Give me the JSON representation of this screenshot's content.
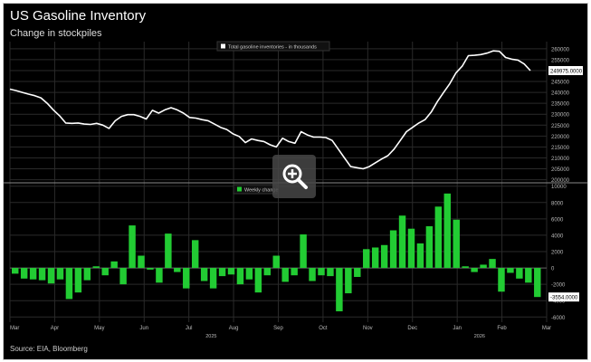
{
  "title": "US Gasoline Inventory",
  "subtitle": "Change in stockpiles",
  "source": "Source: EIA, Bloomberg",
  "zoom_icon": "zoom-in-icon",
  "chart_data": [
    {
      "type": "line",
      "series": [
        {
          "name": "Total gasoline inventories - in thousands",
          "color": "#ffffff",
          "values": [
            241500,
            240800,
            240000,
            239200,
            238500,
            237500,
            235000,
            232000,
            229300,
            226000,
            225800,
            226000,
            225500,
            225300,
            225800,
            225000,
            223500,
            227000,
            229000,
            229800,
            229800,
            229000,
            227800,
            231800,
            230500,
            232000,
            233000,
            232000,
            230500,
            228500,
            228200,
            227500,
            227000,
            225500,
            224000,
            223000,
            221000,
            219800,
            217000,
            218700,
            218000,
            217500,
            216000,
            215000,
            219000,
            217500,
            216700,
            222000,
            220500,
            219500,
            219500,
            219300,
            218000,
            214000,
            210000,
            206000,
            205500,
            205000,
            206000,
            207800,
            209500,
            211000,
            214000,
            218000,
            222000,
            224000,
            226000,
            227500,
            231000,
            235800,
            240000,
            244000,
            249000,
            252000,
            256800,
            257000,
            257300,
            258000,
            259000,
            258800,
            256000,
            255200,
            254800,
            253000,
            249975
          ]
        }
      ],
      "y_ticks": [
        200000,
        205000,
        210000,
        215000,
        220000,
        225000,
        230000,
        235000,
        240000,
        245000,
        250000,
        255000,
        260000
      ],
      "ylim": [
        199000,
        262000
      ],
      "last_value_label": "249975.0000",
      "legend": "top-center"
    },
    {
      "type": "bar",
      "series": [
        {
          "name": "Weekly change",
          "color": "#22cc33",
          "values": [
            -700,
            -1300,
            -1400,
            -1500,
            -1900,
            -1400,
            -3800,
            -3000,
            -1500,
            200,
            -900,
            800,
            -2000,
            5200,
            1500,
            -200,
            -1800,
            4200,
            -500,
            -2500,
            3400,
            -1600,
            -2500,
            -1000,
            -800,
            -2000,
            -1400,
            -3000,
            -900,
            1500,
            -1700,
            -900,
            4100,
            -1600,
            -900,
            -1000,
            -5300,
            -3100,
            -1100,
            2300,
            2500,
            2800,
            4600,
            6400,
            4800,
            3000,
            5100,
            7500,
            9100,
            5900,
            200,
            -500,
            400,
            1100,
            -2900,
            -600,
            -1300,
            -1800,
            -3554
          ]
        }
      ],
      "y_ticks": [
        -6000,
        -4000,
        -2000,
        0,
        2000,
        4000,
        6000,
        8000,
        10000
      ],
      "ylim": [
        -6300,
        10300
      ],
      "last_value_label": "-3554.0000",
      "legend": "top-center"
    }
  ],
  "x_axis": {
    "months": [
      "Mar",
      "Apr",
      "May",
      "Jun",
      "Jul",
      "Aug",
      "Sep",
      "Oct",
      "Nov",
      "Dec",
      "Jan",
      "Feb",
      "Mar"
    ],
    "years": [
      "2025",
      "2026"
    ]
  }
}
